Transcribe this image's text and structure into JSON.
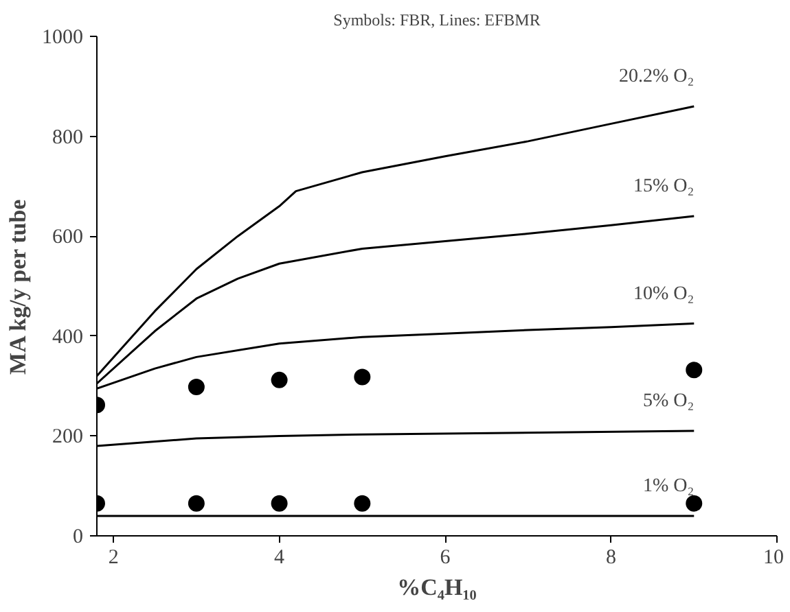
{
  "chart_data": {
    "type": "line",
    "title": "Symbols: FBR, Lines: EFBMR",
    "xlabel": "%C₄H₁₀",
    "ylabel": "MA kg/y per tube",
    "xlim": [
      1.8,
      10
    ],
    "xticks": [
      2,
      4,
      6,
      8,
      10
    ],
    "ylim": [
      0,
      1000
    ],
    "yticks": [
      0,
      200,
      400,
      600,
      800,
      1000
    ],
    "grid": false,
    "line_style": "solid",
    "marker": "none",
    "series": [
      {
        "name": "20.2% O₂",
        "color": "#000000",
        "x": [
          1.8,
          2.5,
          3,
          3.5,
          4,
          4.2,
          5,
          6,
          7,
          8,
          9
        ],
        "values": [
          320,
          450,
          534,
          600,
          660,
          690,
          728,
          760,
          790,
          825,
          860
        ]
      },
      {
        "name": "15% O₂",
        "color": "#000000",
        "x": [
          1.8,
          2.5,
          3,
          3.5,
          4,
          5,
          6,
          7,
          8,
          9
        ],
        "values": [
          305,
          410,
          475,
          515,
          545,
          575,
          590,
          605,
          622,
          640
        ]
      },
      {
        "name": "10% O₂",
        "color": "#000000",
        "x": [
          1.8,
          2.5,
          3,
          4,
          5,
          6,
          7,
          8,
          9
        ],
        "values": [
          295,
          335,
          358,
          385,
          398,
          405,
          412,
          418,
          425
        ]
      },
      {
        "name": "5% O₂",
        "color": "#000000",
        "x": [
          1.8,
          3,
          4,
          5,
          9
        ],
        "values": [
          180,
          195,
          200,
          203,
          210
        ]
      },
      {
        "name": "1% O₂",
        "color": "#000000",
        "x": [
          1.8,
          9
        ],
        "values": [
          40,
          40
        ]
      },
      {
        "type": "scatter",
        "marker": "circle",
        "color": "#000000",
        "x": [
          1.8,
          3,
          4,
          5,
          9
        ],
        "values": [
          262,
          298,
          312,
          318,
          332
        ]
      },
      {
        "type": "scatter",
        "marker": "circle",
        "color": "#000000",
        "x": [
          1.8,
          3,
          4,
          5,
          9
        ],
        "values": [
          65,
          65,
          65,
          65,
          65
        ]
      }
    ]
  }
}
